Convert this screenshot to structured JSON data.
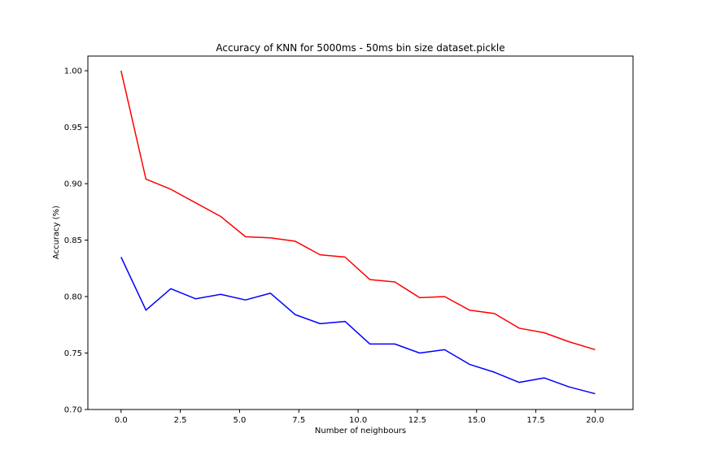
{
  "chart_data": {
    "type": "line",
    "title": "Accuracy of KNN for 5000ms - 50ms bin size dataset.pickle",
    "xlabel": "Number of neighbours",
    "ylabel": "Accuracy (%)",
    "xlim": [
      -1.4,
      21.6
    ],
    "ylim": [
      0.7,
      1.013
    ],
    "xticks": [
      0.0,
      2.5,
      5.0,
      7.5,
      10.0,
      12.5,
      15.0,
      17.5,
      20.0
    ],
    "xtick_labels": [
      "0.0",
      "2.5",
      "5.0",
      "7.5",
      "10.0",
      "12.5",
      "15.0",
      "17.5",
      "20.0"
    ],
    "yticks": [
      0.7,
      0.75,
      0.8,
      0.85,
      0.9,
      0.95,
      1.0
    ],
    "ytick_labels": [
      "0.70",
      "0.75",
      "0.80",
      "0.85",
      "0.90",
      "0.95",
      "1.00"
    ],
    "grid": false,
    "x": [
      0.0,
      1.05,
      2.1,
      3.15,
      4.2,
      5.25,
      6.3,
      7.35,
      8.4,
      9.45,
      10.5,
      11.55,
      12.6,
      13.65,
      14.7,
      15.75,
      16.8,
      17.85,
      18.9,
      20.0
    ],
    "series": [
      {
        "color": "#ff0000",
        "values": [
          1.0,
          0.904,
          0.895,
          0.883,
          0.871,
          0.853,
          0.852,
          0.849,
          0.837,
          0.835,
          0.815,
          0.813,
          0.799,
          0.8,
          0.788,
          0.785,
          0.772,
          0.768,
          0.76,
          0.753
        ]
      },
      {
        "color": "#0000ff",
        "values": [
          0.835,
          0.788,
          0.807,
          0.798,
          0.802,
          0.797,
          0.803,
          0.784,
          0.776,
          0.778,
          0.758,
          0.758,
          0.75,
          0.753,
          0.74,
          0.733,
          0.724,
          0.728,
          0.72,
          0.714
        ]
      }
    ]
  }
}
